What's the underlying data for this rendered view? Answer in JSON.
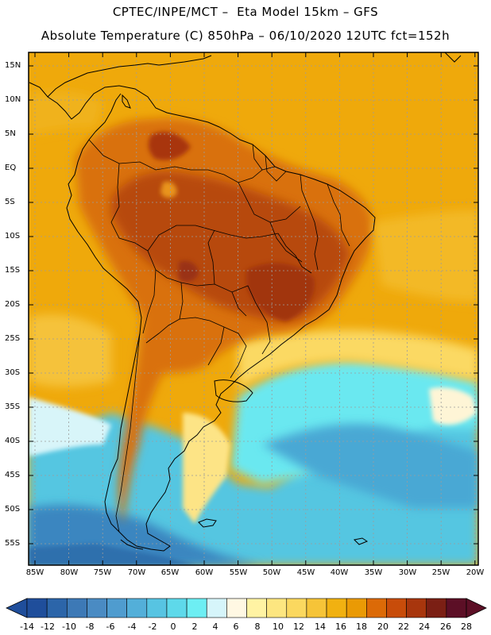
{
  "header": {
    "line1": "CPTEC/INPE/MCT –  Eta Model 15km – GFS",
    "line2": "Absolute Temperature (C) 850hPa – 06/10/2020 12UTC fct=152h"
  },
  "map": {
    "lat_labels": [
      "15N",
      "10N",
      "5N",
      "EQ",
      "5S",
      "10S",
      "15S",
      "20S",
      "25S",
      "30S",
      "35S",
      "40S",
      "45S",
      "50S",
      "55S"
    ],
    "lon_labels": [
      "85W",
      "80W",
      "75W",
      "70W",
      "65W",
      "60W",
      "55W",
      "50W",
      "45W",
      "40W",
      "35W",
      "30W",
      "25W",
      "20W"
    ]
  },
  "colorbar": {
    "labels": [
      "-14",
      "-12",
      "-10",
      "-8",
      "-6",
      "-4",
      "-2",
      "0",
      "2",
      "4",
      "6",
      "8",
      "10",
      "12",
      "14",
      "16",
      "18",
      "20",
      "22",
      "24",
      "26",
      "28"
    ],
    "colors": [
      "#1f4e9b",
      "#2c65a9",
      "#3d79b6",
      "#4a8bc3",
      "#4f9ccf",
      "#53afd9",
      "#57c4e2",
      "#5ed9ea",
      "#6deef3",
      "#d6f5fa",
      "#fff8e3",
      "#fff3a3",
      "#fde680",
      "#fbd85f",
      "#f6c438",
      "#f1b111",
      "#ea9a05",
      "#dc6a07",
      "#c84c0a",
      "#a8360d",
      "#7b1f14",
      "#5c0f26"
    ]
  },
  "colors": {
    "border": "#000000",
    "grid": "#9c9c9c"
  }
}
